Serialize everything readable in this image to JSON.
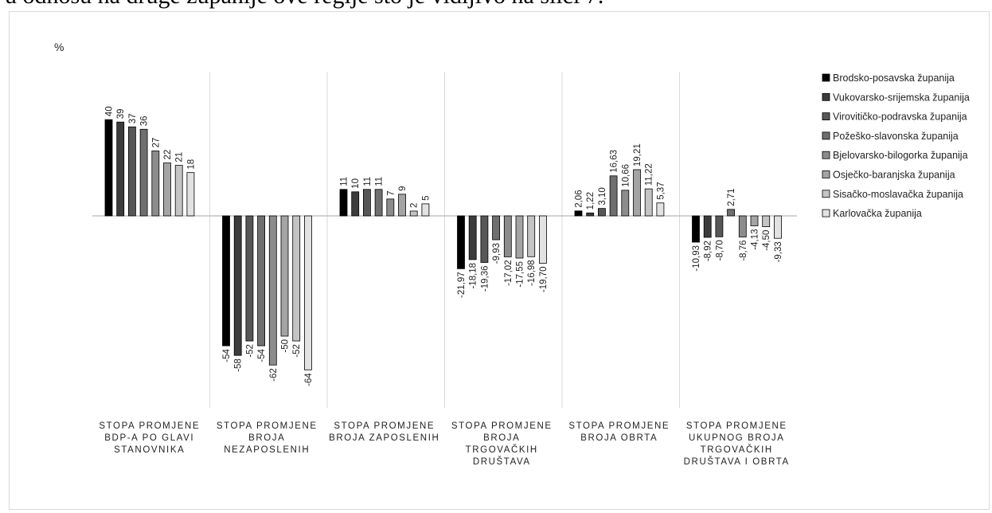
{
  "header_text": "u odnosu na druge županije ove regije što je vidljivo na slici 7.",
  "chart_data": {
    "type": "bar",
    "ylabel": "%",
    "ylim": [
      -75,
      45
    ],
    "grid": false,
    "legend_position": "right",
    "categories": [
      [
        "STOPA PROMJENE",
        "BDP-A PO GLAVI",
        "STANOVNIKA"
      ],
      [
        "STOPA PROMJENE",
        "BROJA",
        "NEZAPOSLENIH"
      ],
      [
        "STOPA PROMJENE",
        "BROJA ZAPOSLENIH"
      ],
      [
        "STOPA PROMJENE",
        "BROJA",
        "TRGOVAČKIH",
        "DRUŠTAVA"
      ],
      [
        "STOPA PROMJENE",
        "BROJA OBRTA"
      ],
      [
        "STOPA PROMJENE",
        "UKUPNOG BROJA",
        "TRGOVAČKIH",
        "DRUŠTAVA I OBRTA"
      ]
    ],
    "series": [
      {
        "name": "Brodsko-posavska županija",
        "color": "#000000",
        "values": [
          40,
          -54,
          11,
          -21.97,
          2.06,
          -10.93
        ],
        "labels": [
          "40",
          "-54",
          "11",
          "-21,97",
          "2,06",
          "-10,93"
        ]
      },
      {
        "name": "Vukovarsko-srijemska županija",
        "color": "#3c3c3c",
        "values": [
          39,
          -58,
          10,
          -18.18,
          1.22,
          -8.92
        ],
        "labels": [
          "39",
          "-58",
          "10",
          "-18,18",
          "1,22",
          "-8,92"
        ]
      },
      {
        "name": "Virovitičko-podravska županija",
        "color": "#575757",
        "values": [
          37,
          -52,
          11,
          -19.36,
          3.1,
          -8.7
        ],
        "labels": [
          "37",
          "-52",
          "11",
          "-19,36",
          "3,10",
          "-8,70"
        ]
      },
      {
        "name": "Požeško-slavonska županija",
        "color": "#6f6f6f",
        "values": [
          36,
          -54,
          11,
          -9.93,
          16.63,
          2.71
        ],
        "labels": [
          "36",
          "-54",
          "11",
          "-9,93",
          "16,63",
          "2,71"
        ]
      },
      {
        "name": "Bjelovarsko-bilogorka županija",
        "color": "#8c8c8c",
        "values": [
          27,
          -62,
          7,
          -17.02,
          10.66,
          -8.76
        ],
        "labels": [
          "27",
          "-62",
          "7",
          "-17,02",
          "10,66",
          "-8,76"
        ]
      },
      {
        "name": "Osječko-baranjska županija",
        "color": "#a4a4a4",
        "values": [
          22,
          -50,
          9,
          -17.55,
          19.21,
          -4.13
        ],
        "labels": [
          "22",
          "-50",
          "9",
          "-17,55",
          "19,21",
          "-4,13"
        ]
      },
      {
        "name": "Sisačko-moslavačka županija",
        "color": "#c4c4c4",
        "values": [
          21,
          -52,
          2,
          -16.98,
          11.22,
          -4.5
        ],
        "labels": [
          "21",
          "-52",
          "2",
          "-16,98",
          "11,22",
          "-4,50"
        ]
      },
      {
        "name": "Karlovačka županija",
        "color": "#e2e2e2",
        "values": [
          18,
          -64,
          5,
          -19.7,
          5.37,
          -9.33
        ],
        "labels": [
          "18",
          "-64",
          "5",
          "-19,70",
          "5,37",
          "-9,33"
        ]
      }
    ]
  }
}
